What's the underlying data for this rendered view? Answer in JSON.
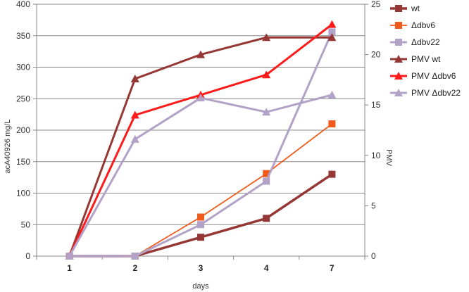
{
  "chart_data": {
    "type": "line",
    "categories": [
      "1",
      "2",
      "3",
      "4",
      "7"
    ],
    "xlabel": "days",
    "ylabel": "acA40926  mg/L",
    "y2label": "PMV",
    "ylim": [
      0,
      400
    ],
    "y2lim": [
      0,
      25
    ],
    "yticks": [
      "0",
      "50",
      "100",
      "150",
      "200",
      "250",
      "300",
      "350",
      "400"
    ],
    "y2ticks": [
      "0",
      "5",
      "10",
      "15",
      "20",
      "25"
    ],
    "grid": "horizontal",
    "legend_position": "right",
    "series": [
      {
        "name": "wt",
        "axis": "left",
        "marker": "square",
        "color": "#953735",
        "width": 3.5,
        "values": [
          0,
          0,
          30,
          60,
          130
        ]
      },
      {
        "name": "Δdbv6",
        "axis": "left",
        "marker": "square",
        "color": "#f05a1a",
        "width": 1.8,
        "values": [
          0,
          0,
          62,
          131,
          210
        ]
      },
      {
        "name": "Δdbv22",
        "axis": "left",
        "marker": "square",
        "color": "#b3a2c7",
        "width": 3,
        "values": [
          0,
          0,
          50,
          119,
          356
        ]
      },
      {
        "name": "PMV wt",
        "axis": "right",
        "marker": "triangle",
        "color": "#953735",
        "width": 3,
        "values": [
          0,
          17.6,
          20,
          21.7,
          21.7
        ]
      },
      {
        "name": "PMV Δdbv6",
        "axis": "right",
        "marker": "triangle",
        "color": "#ff1a1a",
        "width": 3,
        "values": [
          0,
          14,
          16,
          18,
          23
        ]
      },
      {
        "name": "PMV Δdbv22",
        "axis": "right",
        "marker": "triangle",
        "color": "#b3a2c7",
        "width": 3,
        "values": [
          0,
          11.6,
          15.7,
          14.3,
          16
        ]
      }
    ]
  }
}
